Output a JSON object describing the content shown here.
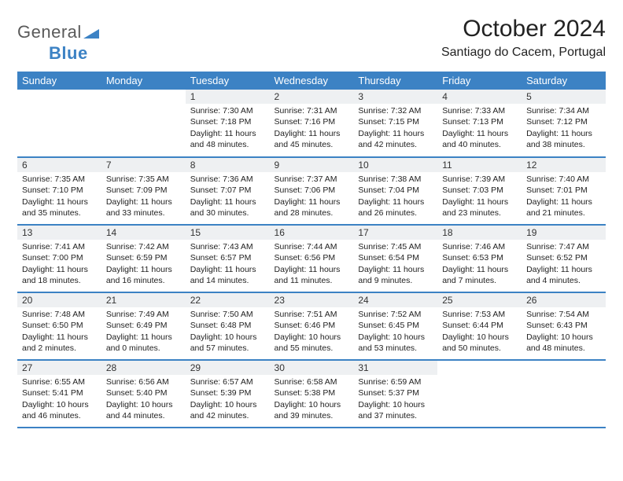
{
  "logo": {
    "general": "General",
    "blue": "Blue"
  },
  "title": "October 2024",
  "location": "Santiago do Cacem, Portugal",
  "colors": {
    "header_bg": "#3c82c4",
    "header_text": "#ffffff",
    "daynum_bg": "#eef0f2",
    "border": "#3c82c4",
    "logo_gray": "#5a5a5a",
    "logo_blue": "#3c82c4"
  },
  "weekdays": [
    "Sunday",
    "Monday",
    "Tuesday",
    "Wednesday",
    "Thursday",
    "Friday",
    "Saturday"
  ],
  "layout": {
    "cols": 7,
    "rows": 5,
    "first_day_index": 2,
    "days_in_month": 31
  },
  "days": {
    "1": {
      "sunrise": "7:30 AM",
      "sunset": "7:18 PM",
      "daylight": "11 hours and 48 minutes."
    },
    "2": {
      "sunrise": "7:31 AM",
      "sunset": "7:16 PM",
      "daylight": "11 hours and 45 minutes."
    },
    "3": {
      "sunrise": "7:32 AM",
      "sunset": "7:15 PM",
      "daylight": "11 hours and 42 minutes."
    },
    "4": {
      "sunrise": "7:33 AM",
      "sunset": "7:13 PM",
      "daylight": "11 hours and 40 minutes."
    },
    "5": {
      "sunrise": "7:34 AM",
      "sunset": "7:12 PM",
      "daylight": "11 hours and 38 minutes."
    },
    "6": {
      "sunrise": "7:35 AM",
      "sunset": "7:10 PM",
      "daylight": "11 hours and 35 minutes."
    },
    "7": {
      "sunrise": "7:35 AM",
      "sunset": "7:09 PM",
      "daylight": "11 hours and 33 minutes."
    },
    "8": {
      "sunrise": "7:36 AM",
      "sunset": "7:07 PM",
      "daylight": "11 hours and 30 minutes."
    },
    "9": {
      "sunrise": "7:37 AM",
      "sunset": "7:06 PM",
      "daylight": "11 hours and 28 minutes."
    },
    "10": {
      "sunrise": "7:38 AM",
      "sunset": "7:04 PM",
      "daylight": "11 hours and 26 minutes."
    },
    "11": {
      "sunrise": "7:39 AM",
      "sunset": "7:03 PM",
      "daylight": "11 hours and 23 minutes."
    },
    "12": {
      "sunrise": "7:40 AM",
      "sunset": "7:01 PM",
      "daylight": "11 hours and 21 minutes."
    },
    "13": {
      "sunrise": "7:41 AM",
      "sunset": "7:00 PM",
      "daylight": "11 hours and 18 minutes."
    },
    "14": {
      "sunrise": "7:42 AM",
      "sunset": "6:59 PM",
      "daylight": "11 hours and 16 minutes."
    },
    "15": {
      "sunrise": "7:43 AM",
      "sunset": "6:57 PM",
      "daylight": "11 hours and 14 minutes."
    },
    "16": {
      "sunrise": "7:44 AM",
      "sunset": "6:56 PM",
      "daylight": "11 hours and 11 minutes."
    },
    "17": {
      "sunrise": "7:45 AM",
      "sunset": "6:54 PM",
      "daylight": "11 hours and 9 minutes."
    },
    "18": {
      "sunrise": "7:46 AM",
      "sunset": "6:53 PM",
      "daylight": "11 hours and 7 minutes."
    },
    "19": {
      "sunrise": "7:47 AM",
      "sunset": "6:52 PM",
      "daylight": "11 hours and 4 minutes."
    },
    "20": {
      "sunrise": "7:48 AM",
      "sunset": "6:50 PM",
      "daylight": "11 hours and 2 minutes."
    },
    "21": {
      "sunrise": "7:49 AM",
      "sunset": "6:49 PM",
      "daylight": "11 hours and 0 minutes."
    },
    "22": {
      "sunrise": "7:50 AM",
      "sunset": "6:48 PM",
      "daylight": "10 hours and 57 minutes."
    },
    "23": {
      "sunrise": "7:51 AM",
      "sunset": "6:46 PM",
      "daylight": "10 hours and 55 minutes."
    },
    "24": {
      "sunrise": "7:52 AM",
      "sunset": "6:45 PM",
      "daylight": "10 hours and 53 minutes."
    },
    "25": {
      "sunrise": "7:53 AM",
      "sunset": "6:44 PM",
      "daylight": "10 hours and 50 minutes."
    },
    "26": {
      "sunrise": "7:54 AM",
      "sunset": "6:43 PM",
      "daylight": "10 hours and 48 minutes."
    },
    "27": {
      "sunrise": "6:55 AM",
      "sunset": "5:41 PM",
      "daylight": "10 hours and 46 minutes."
    },
    "28": {
      "sunrise": "6:56 AM",
      "sunset": "5:40 PM",
      "daylight": "10 hours and 44 minutes."
    },
    "29": {
      "sunrise": "6:57 AM",
      "sunset": "5:39 PM",
      "daylight": "10 hours and 42 minutes."
    },
    "30": {
      "sunrise": "6:58 AM",
      "sunset": "5:38 PM",
      "daylight": "10 hours and 39 minutes."
    },
    "31": {
      "sunrise": "6:59 AM",
      "sunset": "5:37 PM",
      "daylight": "10 hours and 37 minutes."
    }
  },
  "labels": {
    "sunrise": "Sunrise: ",
    "sunset": "Sunset: ",
    "daylight": "Daylight: "
  }
}
